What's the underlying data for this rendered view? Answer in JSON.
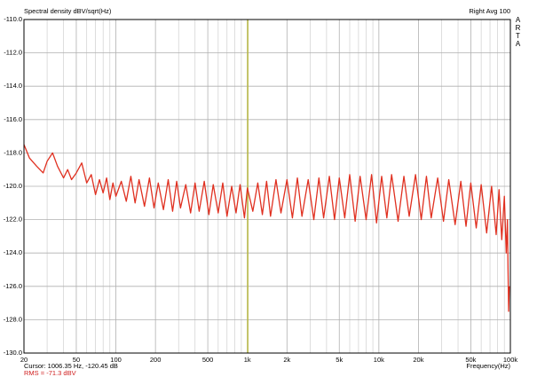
{
  "chart_data": {
    "type": "line",
    "title": "Spectral density dBV/sqrt(Hz)",
    "header_right": "Right  Avg 100",
    "side_label": "ARTA",
    "x_label": "Frequency(Hz)",
    "cursor_text": "Cursor: 1006.35 Hz, -120.45 dB",
    "rms_text": "RMS =  -71.3 dBV",
    "cursor_x": 1006.35,
    "cursor_color": "#b8b840",
    "log_x": true,
    "grid": true,
    "xlim": [
      20,
      100000
    ],
    "ylim": [
      -130,
      -110
    ],
    "xticks": [
      20,
      50,
      100,
      200,
      500,
      {
        "value": 1000,
        "label": "1k"
      },
      {
        "value": 2000,
        "label": "2k"
      },
      {
        "value": 5000,
        "label": "5k"
      },
      {
        "value": 10000,
        "label": "10k"
      },
      {
        "value": 20000,
        "label": "20k"
      },
      {
        "value": 50000,
        "label": "50k"
      },
      {
        "value": 100000,
        "label": "100k"
      }
    ],
    "xminor": [
      30,
      40,
      60,
      70,
      80,
      90,
      300,
      400,
      600,
      700,
      800,
      900,
      3000,
      4000,
      6000,
      7000,
      8000,
      9000,
      30000,
      40000,
      60000,
      70000,
      80000,
      90000
    ],
    "yticks": [
      {
        "value": -130,
        "label": "-130.0"
      },
      {
        "value": -128,
        "label": "-128.0"
      },
      {
        "value": -126,
        "label": "-126.0"
      },
      {
        "value": -124,
        "label": "-124.0"
      },
      {
        "value": -122,
        "label": "-122.0"
      },
      {
        "value": -120,
        "label": "-120.0"
      },
      {
        "value": -118,
        "label": "-118.0"
      },
      {
        "value": -116,
        "label": "-116.0"
      },
      {
        "value": -114,
        "label": "-114.0"
      },
      {
        "value": -112,
        "label": "-112.0"
      },
      {
        "value": -110,
        "label": "-110.0"
      }
    ],
    "series": [
      {
        "color": "#e03020",
        "x": [
          20,
          22,
          25,
          28,
          30,
          33,
          36,
          40,
          43,
          46,
          50,
          55,
          60,
          65,
          70,
          75,
          80,
          85,
          90,
          95,
          100,
          110,
          120,
          130,
          140,
          150,
          165,
          180,
          195,
          210,
          230,
          250,
          270,
          290,
          310,
          340,
          370,
          400,
          430,
          470,
          510,
          550,
          600,
          650,
          700,
          760,
          820,
          880,
          950,
          1000,
          1100,
          1200,
          1300,
          1400,
          1500,
          1650,
          1800,
          2000,
          2200,
          2400,
          2600,
          2900,
          3200,
          3500,
          3800,
          4200,
          4600,
          5000,
          5500,
          6000,
          6600,
          7200,
          8000,
          8800,
          9600,
          10500,
          11500,
          12500,
          14000,
          15500,
          17000,
          19000,
          21000,
          23000,
          25000,
          28000,
          31000,
          34000,
          38000,
          42000,
          46000,
          50000,
          55000,
          60000,
          66000,
          72000,
          78000,
          82000,
          86000,
          90000,
          93000,
          95000,
          96000,
          97000,
          98000
        ],
        "values": [
          -117.5,
          -118.3,
          -118.8,
          -119.2,
          -118.5,
          -118.0,
          -118.8,
          -119.5,
          -119.0,
          -119.6,
          -119.2,
          -118.6,
          -119.8,
          -119.3,
          -120.5,
          -119.6,
          -120.4,
          -119.5,
          -120.8,
          -119.8,
          -120.6,
          -119.7,
          -120.9,
          -119.4,
          -121.0,
          -119.6,
          -121.2,
          -119.5,
          -121.3,
          -119.8,
          -121.4,
          -119.6,
          -121.5,
          -119.7,
          -121.3,
          -119.9,
          -121.6,
          -119.8,
          -121.5,
          -119.7,
          -121.7,
          -119.9,
          -121.6,
          -119.8,
          -121.8,
          -120.0,
          -121.6,
          -119.9,
          -121.9,
          -120.1,
          -121.5,
          -119.8,
          -121.7,
          -119.7,
          -121.8,
          -119.6,
          -121.6,
          -119.6,
          -121.9,
          -119.5,
          -121.8,
          -119.6,
          -122.0,
          -119.5,
          -121.9,
          -119.4,
          -122.0,
          -119.5,
          -121.9,
          -119.3,
          -122.1,
          -119.4,
          -122.0,
          -119.3,
          -122.2,
          -119.4,
          -121.9,
          -119.3,
          -122.1,
          -119.4,
          -121.8,
          -119.3,
          -122.0,
          -119.4,
          -121.9,
          -119.5,
          -122.1,
          -119.6,
          -122.3,
          -119.7,
          -122.4,
          -119.8,
          -122.5,
          -119.9,
          -122.8,
          -120.0,
          -122.9,
          -120.2,
          -123.2,
          -120.6,
          -124.0,
          -122.0,
          -125.0,
          -127.5,
          -126.0
        ]
      }
    ]
  }
}
